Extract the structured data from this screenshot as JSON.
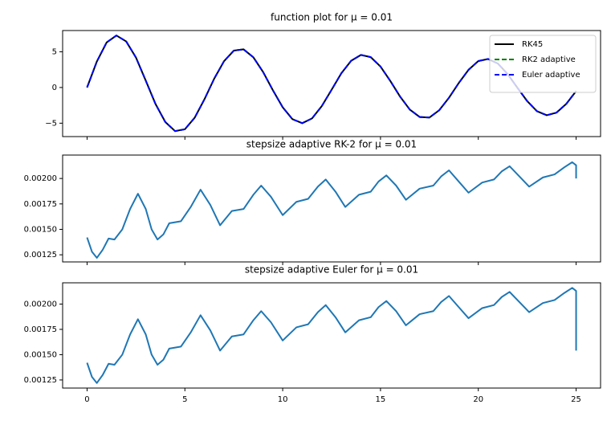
{
  "chart_data": [
    {
      "type": "line",
      "title": "function plot for μ = 0.01",
      "x": [
        0,
        0.5,
        1,
        1.5,
        2,
        2.5,
        3,
        3.5,
        4,
        4.5,
        5,
        5.5,
        6,
        6.5,
        7,
        7.5,
        8,
        8.5,
        9,
        9.5,
        10,
        10.5,
        11,
        11.5,
        12,
        12.5,
        13,
        13.5,
        14,
        14.5,
        15,
        15.5,
        16,
        16.5,
        17,
        17.5,
        18,
        18.5,
        19,
        19.5,
        20,
        20.5,
        21,
        21.5,
        22,
        22.5,
        23,
        23.5,
        24,
        24.5,
        25
      ],
      "series": [
        {
          "name": "RK45",
          "color": "#000000",
          "linestyle": "solid",
          "values": [
            0,
            3.64,
            6.31,
            7.28,
            6.45,
            4.19,
            0.96,
            -2.32,
            -4.84,
            -6.11,
            -5.85,
            -4.24,
            -1.65,
            1.24,
            3.68,
            5.16,
            5.34,
            4.23,
            2.16,
            -0.39,
            -2.77,
            -4.44,
            -5.0,
            -4.33,
            -2.6,
            -0.32,
            2.0,
            3.74,
            4.56,
            4.25,
            2.93,
            0.92,
            -1.27,
            -3.1,
            -4.13,
            -4.21,
            -3.19,
            -1.44,
            0.62,
            2.47,
            3.7,
            3.99,
            3.35,
            1.88,
            -0.04,
            -1.91,
            -3.32,
            -3.89,
            -3.52,
            -2.29,
            -0.51
          ]
        },
        {
          "name": "RK2 adaptive",
          "color": "#008000",
          "linestyle": "dashed",
          "values": [
            0,
            3.64,
            6.31,
            7.28,
            6.45,
            4.19,
            0.96,
            -2.32,
            -4.84,
            -6.11,
            -5.85,
            -4.24,
            -1.65,
            1.24,
            3.68,
            5.16,
            5.34,
            4.23,
            2.16,
            -0.39,
            -2.77,
            -4.44,
            -5.0,
            -4.33,
            -2.6,
            -0.32,
            2.0,
            3.74,
            4.56,
            4.25,
            2.93,
            0.92,
            -1.27,
            -3.1,
            -4.13,
            -4.21,
            -3.19,
            -1.44,
            0.62,
            2.47,
            3.7,
            3.99,
            3.35,
            1.88,
            -0.04,
            -1.91,
            -3.32,
            -3.89,
            -3.52,
            -2.29,
            -0.51
          ]
        },
        {
          "name": "Euler adaptive",
          "color": "#0000ff",
          "linestyle": "dashed",
          "values": [
            0,
            3.64,
            6.31,
            7.28,
            6.45,
            4.19,
            0.96,
            -2.32,
            -4.84,
            -6.11,
            -5.85,
            -4.24,
            -1.65,
            1.24,
            3.68,
            5.16,
            5.34,
            4.23,
            2.16,
            -0.39,
            -2.77,
            -4.44,
            -5.0,
            -4.33,
            -2.6,
            -0.32,
            2.0,
            3.74,
            4.56,
            4.25,
            2.93,
            0.92,
            -1.27,
            -3.1,
            -4.13,
            -4.21,
            -3.19,
            -1.44,
            0.62,
            2.47,
            3.7,
            3.99,
            3.35,
            1.88,
            -0.04,
            -1.91,
            -3.32,
            -3.89,
            -3.52,
            -2.29,
            -0.51
          ]
        }
      ],
      "xlim": [
        -1.25,
        26.25
      ],
      "ylim": [
        -6.875,
        7.975
      ],
      "yticks": [
        {
          "value": -5,
          "label": "−5"
        },
        0,
        5
      ],
      "legend": "upper right"
    },
    {
      "type": "line",
      "title": "stepsize adaptive RK-2 for μ = 0.01",
      "x": [
        0,
        0.25,
        0.5,
        0.8,
        1.1,
        1.4,
        1.8,
        2.2,
        2.6,
        3.0,
        3.3,
        3.6,
        3.9,
        4.2,
        4.8,
        5.3,
        5.8,
        6.3,
        6.8,
        7.4,
        8.0,
        8.5,
        8.9,
        9.4,
        10.0,
        10.7,
        11.3,
        11.8,
        12.2,
        12.7,
        13.2,
        13.9,
        14.5,
        14.9,
        15.3,
        15.8,
        16.3,
        17.0,
        17.7,
        18.1,
        18.5,
        19.0,
        19.5,
        20.2,
        20.8,
        21.2,
        21.6,
        22.1,
        22.6,
        23.3,
        23.9,
        24.4,
        24.8,
        25.0,
        25.0
      ],
      "series": [
        {
          "color": "#1f77b4",
          "linestyle": "solid",
          "values": [
            0.00142,
            0.00128,
            0.00122,
            0.0013,
            0.00141,
            0.0014,
            0.0015,
            0.0017,
            0.00185,
            0.0017,
            0.0015,
            0.0014,
            0.00145,
            0.00156,
            0.00158,
            0.00172,
            0.00189,
            0.00174,
            0.00154,
            0.00168,
            0.0017,
            0.00184,
            0.00193,
            0.00182,
            0.00164,
            0.00177,
            0.0018,
            0.00192,
            0.00199,
            0.00187,
            0.00172,
            0.00184,
            0.00187,
            0.00197,
            0.00203,
            0.00193,
            0.00179,
            0.0019,
            0.00193,
            0.00202,
            0.00208,
            0.00197,
            0.00186,
            0.00196,
            0.00199,
            0.00207,
            0.00212,
            0.00202,
            0.00192,
            0.00201,
            0.00204,
            0.00211,
            0.00216,
            0.00213,
            0.002
          ]
        }
      ],
      "xlim": [
        -1.25,
        26.25
      ],
      "ylim": [
        0.00118,
        0.00223
      ],
      "yticks": [
        0.00125,
        {
          "value": 0.0015,
          "label": "0.00150"
        },
        0.00175,
        {
          "value": 0.002,
          "label": "0.00200"
        }
      ]
    },
    {
      "type": "line",
      "title": "stepsize adaptive Euler for μ = 0.01",
      "x": [
        0,
        0.25,
        0.5,
        0.8,
        1.1,
        1.4,
        1.8,
        2.2,
        2.6,
        3.0,
        3.3,
        3.6,
        3.9,
        4.2,
        4.8,
        5.3,
        5.8,
        6.3,
        6.8,
        7.4,
        8.0,
        8.5,
        8.9,
        9.4,
        10.0,
        10.7,
        11.3,
        11.8,
        12.2,
        12.7,
        13.2,
        13.9,
        14.5,
        14.9,
        15.3,
        15.8,
        16.3,
        17.0,
        17.7,
        18.1,
        18.5,
        19.0,
        19.5,
        20.2,
        20.8,
        21.2,
        21.6,
        22.1,
        22.6,
        23.3,
        23.9,
        24.4,
        24.8,
        25.0,
        25.0
      ],
      "series": [
        {
          "color": "#1f77b4",
          "linestyle": "solid",
          "values": [
            0.00142,
            0.00128,
            0.00122,
            0.0013,
            0.00141,
            0.0014,
            0.0015,
            0.0017,
            0.00185,
            0.0017,
            0.0015,
            0.0014,
            0.00145,
            0.00156,
            0.00158,
            0.00172,
            0.00189,
            0.00174,
            0.00154,
            0.00168,
            0.0017,
            0.00184,
            0.00193,
            0.00182,
            0.00164,
            0.00177,
            0.0018,
            0.00192,
            0.00199,
            0.00187,
            0.00172,
            0.00184,
            0.00187,
            0.00197,
            0.00203,
            0.00193,
            0.00179,
            0.0019,
            0.00193,
            0.00202,
            0.00208,
            0.00197,
            0.00186,
            0.00196,
            0.00199,
            0.00207,
            0.00212,
            0.00202,
            0.00192,
            0.00201,
            0.00204,
            0.00211,
            0.00216,
            0.00213,
            0.00154
          ]
        }
      ],
      "xlim": [
        -1.25,
        26.25
      ],
      "ylim": [
        0.00117,
        0.00221
      ],
      "yticks": [
        0.00125,
        {
          "value": 0.0015,
          "label": "0.00150"
        },
        0.00175,
        {
          "value": 0.002,
          "label": "0.00200"
        }
      ],
      "xticks": [
        0,
        5,
        10,
        15,
        20,
        25
      ]
    }
  ]
}
